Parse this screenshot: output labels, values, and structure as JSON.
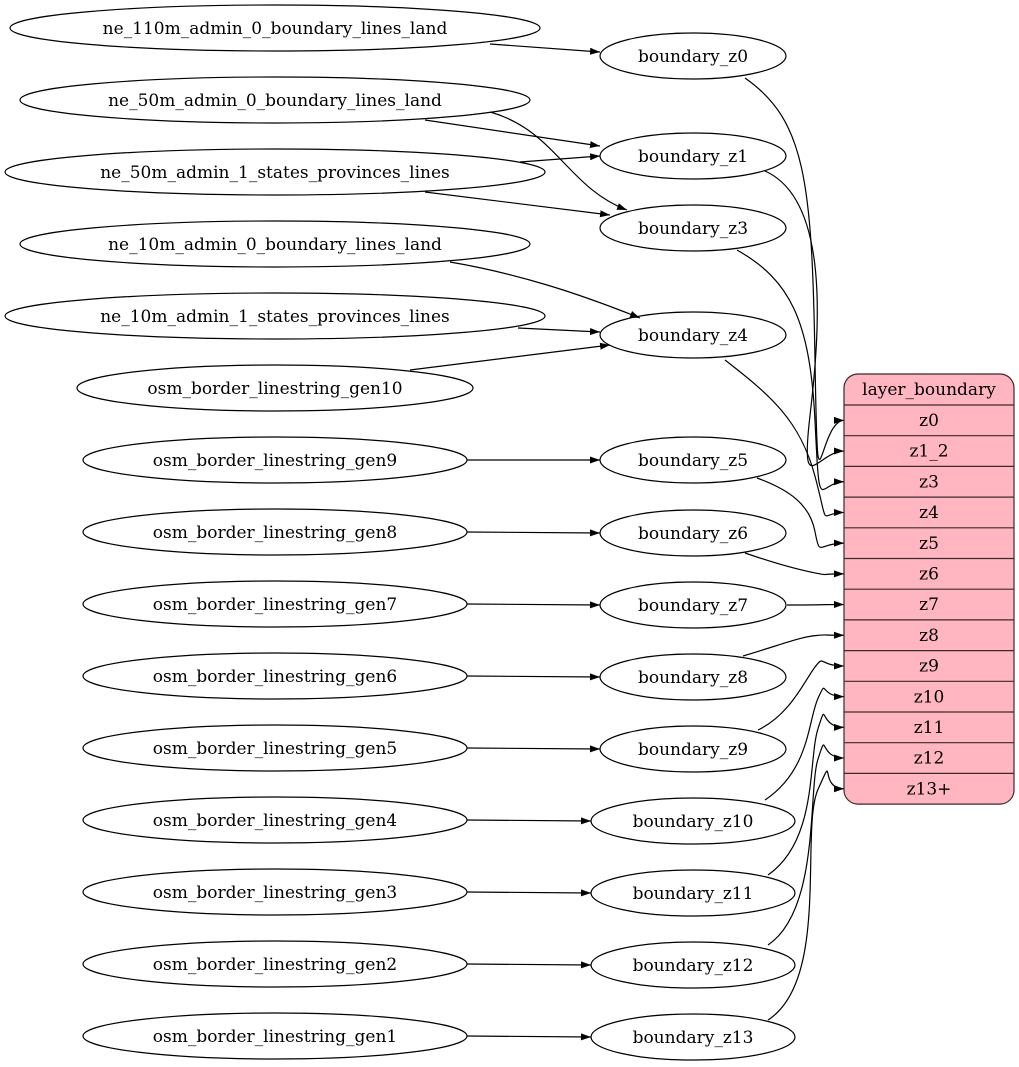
{
  "diagram": {
    "type": "graphviz-digraph",
    "sources": [
      {
        "id": "ne_110m_admin_0_boundary_lines_land",
        "label": "ne_110m_admin_0_boundary_lines_land"
      },
      {
        "id": "ne_50m_admin_0_boundary_lines_land",
        "label": "ne_50m_admin_0_boundary_lines_land"
      },
      {
        "id": "ne_50m_admin_1_states_provinces_lines",
        "label": "ne_50m_admin_1_states_provinces_lines"
      },
      {
        "id": "ne_10m_admin_0_boundary_lines_land",
        "label": "ne_10m_admin_0_boundary_lines_land"
      },
      {
        "id": "ne_10m_admin_1_states_provinces_lines",
        "label": "ne_10m_admin_1_states_provinces_lines"
      },
      {
        "id": "osm_border_linestring_gen10",
        "label": "osm_border_linestring_gen10"
      },
      {
        "id": "osm_border_linestring_gen9",
        "label": "osm_border_linestring_gen9"
      },
      {
        "id": "osm_border_linestring_gen8",
        "label": "osm_border_linestring_gen8"
      },
      {
        "id": "osm_border_linestring_gen7",
        "label": "osm_border_linestring_gen7"
      },
      {
        "id": "osm_border_linestring_gen6",
        "label": "osm_border_linestring_gen6"
      },
      {
        "id": "osm_border_linestring_gen5",
        "label": "osm_border_linestring_gen5"
      },
      {
        "id": "osm_border_linestring_gen4",
        "label": "osm_border_linestring_gen4"
      },
      {
        "id": "osm_border_linestring_gen3",
        "label": "osm_border_linestring_gen3"
      },
      {
        "id": "osm_border_linestring_gen2",
        "label": "osm_border_linestring_gen2"
      },
      {
        "id": "osm_border_linestring_gen1",
        "label": "osm_border_linestring_gen1"
      }
    ],
    "views": [
      {
        "id": "boundary_z0",
        "label": "boundary_z0"
      },
      {
        "id": "boundary_z1",
        "label": "boundary_z1"
      },
      {
        "id": "boundary_z3",
        "label": "boundary_z3"
      },
      {
        "id": "boundary_z4",
        "label": "boundary_z4"
      },
      {
        "id": "boundary_z5",
        "label": "boundary_z5"
      },
      {
        "id": "boundary_z6",
        "label": "boundary_z6"
      },
      {
        "id": "boundary_z7",
        "label": "boundary_z7"
      },
      {
        "id": "boundary_z8",
        "label": "boundary_z8"
      },
      {
        "id": "boundary_z9",
        "label": "boundary_z9"
      },
      {
        "id": "boundary_z10",
        "label": "boundary_z10"
      },
      {
        "id": "boundary_z11",
        "label": "boundary_z11"
      },
      {
        "id": "boundary_z12",
        "label": "boundary_z12"
      },
      {
        "id": "boundary_z13",
        "label": "boundary_z13"
      }
    ],
    "layer": {
      "title": "layer_boundary",
      "fill": "#ffb6c1",
      "fields": [
        "z0",
        "z1_2",
        "z3",
        "z4",
        "z5",
        "z6",
        "z7",
        "z8",
        "z9",
        "z10",
        "z11",
        "z12",
        "z13+"
      ]
    },
    "edges": [
      {
        "from": "ne_110m_admin_0_boundary_lines_land",
        "to": "boundary_z0"
      },
      {
        "from": "ne_50m_admin_0_boundary_lines_land",
        "to": "boundary_z1"
      },
      {
        "from": "ne_50m_admin_0_boundary_lines_land",
        "to": "boundary_z3"
      },
      {
        "from": "ne_50m_admin_1_states_provinces_lines",
        "to": "boundary_z1"
      },
      {
        "from": "ne_50m_admin_1_states_provinces_lines",
        "to": "boundary_z3"
      },
      {
        "from": "ne_10m_admin_0_boundary_lines_land",
        "to": "boundary_z4"
      },
      {
        "from": "ne_10m_admin_1_states_provinces_lines",
        "to": "boundary_z4"
      },
      {
        "from": "osm_border_linestring_gen10",
        "to": "boundary_z4"
      },
      {
        "from": "osm_border_linestring_gen9",
        "to": "boundary_z5"
      },
      {
        "from": "osm_border_linestring_gen8",
        "to": "boundary_z6"
      },
      {
        "from": "osm_border_linestring_gen7",
        "to": "boundary_z7"
      },
      {
        "from": "osm_border_linestring_gen6",
        "to": "boundary_z8"
      },
      {
        "from": "osm_border_linestring_gen5",
        "to": "boundary_z9"
      },
      {
        "from": "osm_border_linestring_gen4",
        "to": "boundary_z10"
      },
      {
        "from": "osm_border_linestring_gen3",
        "to": "boundary_z11"
      },
      {
        "from": "osm_border_linestring_gen2",
        "to": "boundary_z12"
      },
      {
        "from": "osm_border_linestring_gen1",
        "to": "boundary_z13"
      },
      {
        "from": "boundary_z0",
        "to": "layer_boundary:z0"
      },
      {
        "from": "boundary_z1",
        "to": "layer_boundary:z1_2"
      },
      {
        "from": "boundary_z3",
        "to": "layer_boundary:z3"
      },
      {
        "from": "boundary_z4",
        "to": "layer_boundary:z4"
      },
      {
        "from": "boundary_z5",
        "to": "layer_boundary:z5"
      },
      {
        "from": "boundary_z6",
        "to": "layer_boundary:z6"
      },
      {
        "from": "boundary_z7",
        "to": "layer_boundary:z7"
      },
      {
        "from": "boundary_z8",
        "to": "layer_boundary:z8"
      },
      {
        "from": "boundary_z9",
        "to": "layer_boundary:z9"
      },
      {
        "from": "boundary_z10",
        "to": "layer_boundary:z10"
      },
      {
        "from": "boundary_z11",
        "to": "layer_boundary:z11"
      },
      {
        "from": "boundary_z12",
        "to": "layer_boundary:z12"
      },
      {
        "from": "boundary_z13",
        "to": "layer_boundary:z13+"
      }
    ]
  }
}
